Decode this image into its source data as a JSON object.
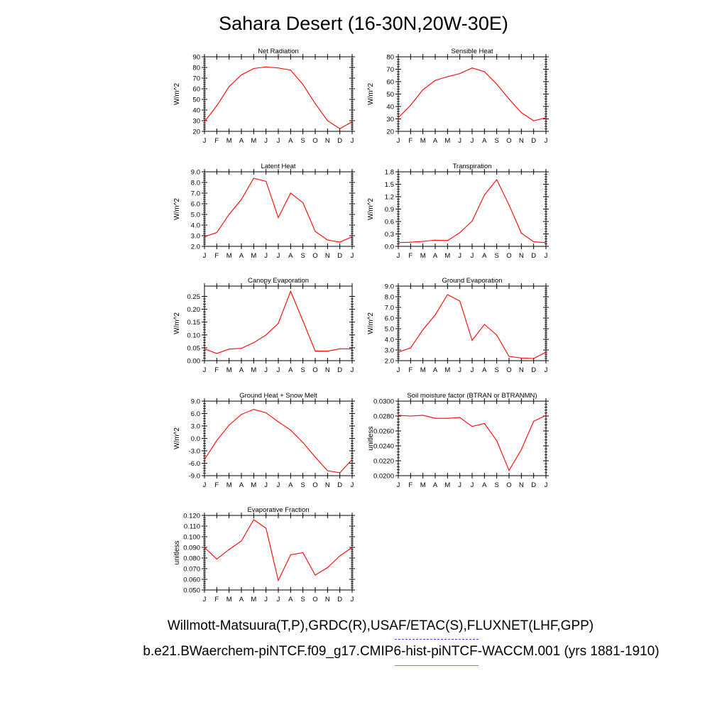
{
  "page": {
    "title": "Sahara Desert (16-30N,20W-30E)",
    "legend_obs": "Willmott-Matsuura(T,P),GRDC(R),USAF/ETAC(S),FLUXNET(LHF,GPP)",
    "legend_case": "b.e21.BWaerchem-piNTCF.f09_g17.CMIP6-hist-piNTCF-WACCM.001 (yrs 1881-1910)",
    "colors": {
      "model_line": "#ff0000",
      "obs_dash": "#4a4af0",
      "case_line": "#f05a5a"
    }
  },
  "chart_data": [
    {
      "type": "line",
      "title": "Net Radiation",
      "ylabel": "W/m^2",
      "categories": [
        "J",
        "F",
        "M",
        "A",
        "M",
        "J",
        "J",
        "A",
        "S",
        "O",
        "N",
        "D",
        "J"
      ],
      "values": [
        29,
        44,
        62,
        73,
        79,
        80.5,
        79.5,
        77.5,
        64,
        46,
        30,
        22.5,
        29
      ],
      "ylim": [
        20,
        90
      ],
      "yticks": [
        "20",
        "30",
        "40",
        "50",
        "60",
        "70",
        "80",
        "90"
      ]
    },
    {
      "type": "line",
      "title": "Sensible Heat",
      "ylabel": "W/m^2",
      "categories": [
        "J",
        "F",
        "M",
        "A",
        "M",
        "J",
        "J",
        "A",
        "S",
        "O",
        "N",
        "D",
        "J"
      ],
      "values": [
        31,
        41,
        53.5,
        61,
        64,
        66.5,
        71,
        68,
        58,
        46,
        35,
        28.5,
        31
      ],
      "ylim": [
        20,
        80
      ],
      "yticks": [
        "20",
        "30",
        "40",
        "50",
        "60",
        "70",
        "80"
      ]
    },
    {
      "type": "line",
      "title": "Latent Heat",
      "ylabel": "W/m^2",
      "categories": [
        "J",
        "F",
        "M",
        "A",
        "M",
        "J",
        "J",
        "A",
        "S",
        "O",
        "N",
        "D",
        "J"
      ],
      "values": [
        2.9,
        3.3,
        5.0,
        6.4,
        8.4,
        8.1,
        4.7,
        7.0,
        6.1,
        3.4,
        2.6,
        2.4,
        2.9
      ],
      "ylim": [
        2.0,
        9.0
      ],
      "yticks": [
        "2.0",
        "3.0",
        "4.0",
        "5.0",
        "6.0",
        "7.0",
        "8.0",
        "9.0"
      ]
    },
    {
      "type": "line",
      "title": "Transpiration",
      "ylabel": "W/m^2",
      "categories": [
        "J",
        "F",
        "M",
        "A",
        "M",
        "J",
        "J",
        "A",
        "S",
        "O",
        "N",
        "D",
        "J"
      ],
      "values": [
        0.09,
        0.1,
        0.12,
        0.15,
        0.14,
        0.33,
        0.61,
        1.24,
        1.61,
        1.0,
        0.32,
        0.11,
        0.09
      ],
      "ylim": [
        0.0,
        1.8
      ],
      "yticks": [
        "0.0",
        "0.3",
        "0.6",
        "0.9",
        "1.2",
        "1.5",
        "1.8"
      ]
    },
    {
      "type": "line",
      "title": "Canopy Evaporation",
      "ylabel": "W/m^2",
      "categories": [
        "J",
        "F",
        "M",
        "A",
        "M",
        "J",
        "J",
        "A",
        "S",
        "O",
        "N",
        "D",
        "J"
      ],
      "values": [
        0.046,
        0.028,
        0.045,
        0.048,
        0.07,
        0.1,
        0.145,
        0.27,
        0.155,
        0.037,
        0.037,
        0.046,
        0.046
      ],
      "ylim": [
        0.0,
        0.29
      ],
      "yticks": [
        "0.00",
        "0.05",
        "0.10",
        "0.15",
        "0.20",
        "0.25"
      ],
      "yticks_values": [
        0.0,
        0.05,
        0.1,
        0.15,
        0.2,
        0.25
      ]
    },
    {
      "type": "line",
      "title": "Ground Evaporation",
      "ylabel": "W/m^2",
      "categories": [
        "J",
        "F",
        "M",
        "A",
        "M",
        "J",
        "J",
        "A",
        "S",
        "O",
        "N",
        "D",
        "J"
      ],
      "values": [
        2.8,
        3.2,
        4.9,
        6.3,
        8.2,
        7.6,
        3.9,
        5.4,
        4.4,
        2.4,
        2.25,
        2.2,
        2.8
      ],
      "ylim": [
        2.0,
        9.0
      ],
      "yticks": [
        "2.0",
        "3.0",
        "4.0",
        "5.0",
        "6.0",
        "7.0",
        "8.0",
        "9.0"
      ]
    },
    {
      "type": "line",
      "title": "Ground Heat + Snow Melt",
      "ylabel": "W/m^2",
      "categories": [
        "J",
        "F",
        "M",
        "A",
        "M",
        "J",
        "J",
        "A",
        "S",
        "O",
        "N",
        "D",
        "J"
      ],
      "values": [
        -5.1,
        -0.5,
        3.2,
        5.8,
        7.0,
        6.2,
        4.0,
        2.0,
        -1.0,
        -4.5,
        -7.8,
        -8.3,
        -5.1
      ],
      "ylim": [
        -9.0,
        9.0
      ],
      "yticks": [
        "-9.0",
        "-6.0",
        "-3.0",
        "0.0",
        "3.0",
        "6.0",
        "9.0"
      ]
    },
    {
      "type": "line",
      "title": "Soil moisture factor (BTRAN or BTRANMN)",
      "ylabel": "unitless",
      "categories": [
        "J",
        "F",
        "M",
        "A",
        "M",
        "J",
        "J",
        "A",
        "S",
        "O",
        "N",
        "D",
        "J"
      ],
      "values": [
        0.0281,
        0.028,
        0.0281,
        0.0277,
        0.0277,
        0.0278,
        0.0266,
        0.027,
        0.0247,
        0.0207,
        0.0235,
        0.0273,
        0.0281
      ],
      "ylim": [
        0.02,
        0.03
      ],
      "yticks": [
        "0.0200",
        "0.0220",
        "0.0240",
        "0.0260",
        "0.0280",
        "0.0300"
      ]
    },
    {
      "type": "line",
      "title": "Evaporative Fraction",
      "ylabel": "unitless",
      "categories": [
        "J",
        "F",
        "M",
        "A",
        "M",
        "J",
        "J",
        "A",
        "S",
        "O",
        "N",
        "D",
        "J"
      ],
      "values": [
        0.09,
        0.079,
        0.088,
        0.096,
        0.116,
        0.108,
        0.059,
        0.083,
        0.085,
        0.064,
        0.071,
        0.082,
        0.09
      ],
      "ylim": [
        0.05,
        0.12
      ],
      "yticks": [
        "0.050",
        "0.060",
        "0.070",
        "0.080",
        "0.090",
        "0.100",
        "0.110",
        "0.120"
      ]
    }
  ]
}
